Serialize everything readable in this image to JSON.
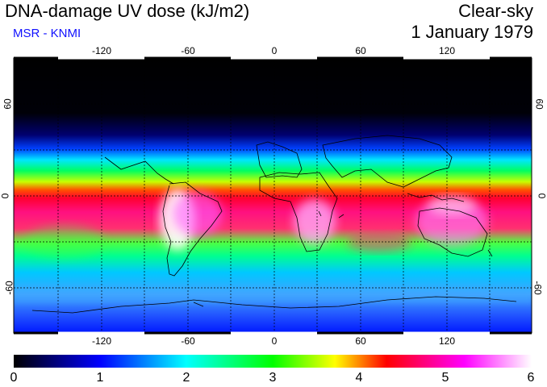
{
  "header": {
    "title": "DNA-damage UV dose (kJ/m2)",
    "source": "MSR - KNMI",
    "sky_condition": "Clear-sky",
    "date": "1 January 1979"
  },
  "map": {
    "projection": "equirectangular",
    "lon_range": [
      -180,
      180
    ],
    "lat_range": [
      -90,
      90
    ],
    "lon_ticks": [
      "-120",
      "-60",
      "0",
      "60",
      "120"
    ],
    "lat_ticks": [
      "60",
      "0",
      "-60"
    ],
    "graticule": "dashed, every 30 degrees",
    "quantity": "clear-sky DNA-damage UV dose",
    "hotspots": [
      {
        "region": "Andes / South America",
        "value": 6
      },
      {
        "region": "Southern Africa",
        "value": 5.5
      },
      {
        "region": "Australia / Indonesia",
        "value": 5.4
      }
    ]
  },
  "colorbar": {
    "min": 0,
    "max": 6,
    "labels": [
      "0",
      "1",
      "2",
      "3",
      "4",
      "5",
      "6"
    ],
    "colors": [
      "#000000",
      "#0000ff",
      "#00ffff",
      "#00ff00",
      "#ffff00",
      "#ff0000",
      "#ff00ff",
      "#ffffff"
    ]
  }
}
